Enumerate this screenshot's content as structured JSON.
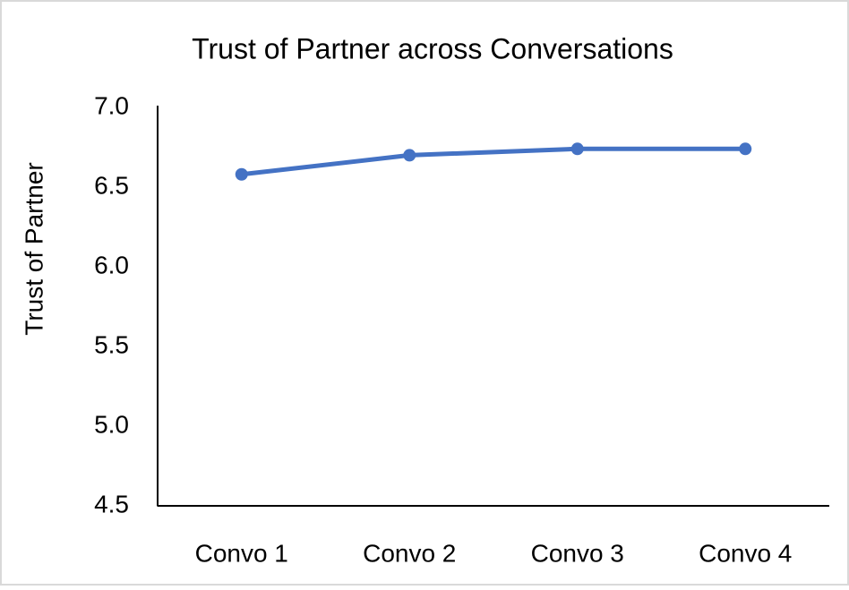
{
  "chart_data": {
    "type": "line",
    "title": "Trust of Partner across Conversations",
    "y_label": "Trust of Partner",
    "categories": [
      "Convo 1",
      "Convo 2",
      "Convo 3",
      "Convo 4"
    ],
    "series": [
      {
        "name": "Trust of Partner",
        "color": "#4472c4",
        "values": [
          6.58,
          6.7,
          6.74,
          6.74
        ]
      }
    ],
    "ylim": [
      4.5,
      7.0
    ],
    "yticks": [
      4.5,
      {
        "value": 5.0,
        "label": "5.0"
      },
      5.5,
      {
        "value": 6.0,
        "label": "6.0"
      },
      6.5,
      {
        "value": 7.0,
        "label": "7.0"
      }
    ],
    "grid": false
  }
}
